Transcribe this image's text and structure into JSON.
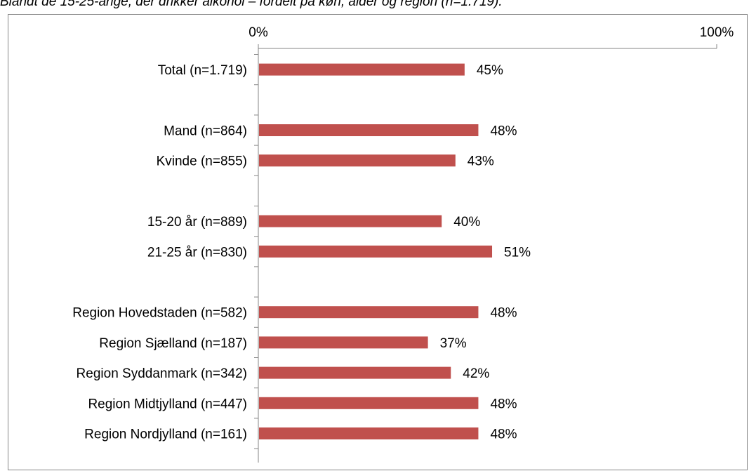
{
  "caption": "Blandt de 15-25-årige, der drikker alkohol – fordelt på køn, alder og region (n=1.719).",
  "chart_data": {
    "type": "bar",
    "orientation": "horizontal",
    "categories": [
      "Total (n=1.719)",
      "",
      "Mand (n=864)",
      "Kvinde (n=855)",
      "",
      "15-20 år (n=889)",
      "21-25 år (n=830)",
      "",
      "Region Hovedstaden (n=582)",
      "Region Sjælland (n=187)",
      "Region Syddanmark (n=342)",
      "Region Midtjylland (n=447)",
      "Region Nordjylland (n=161)"
    ],
    "values": [
      45,
      null,
      48,
      43,
      null,
      40,
      51,
      null,
      48,
      37,
      42,
      48,
      48
    ],
    "data_labels": [
      "45%",
      "",
      "48%",
      "43%",
      "",
      "40%",
      "51%",
      "",
      "48%",
      "37%",
      "42%",
      "48%",
      "48%"
    ],
    "xlim": [
      0,
      100
    ],
    "x_ticks": [
      0,
      100
    ],
    "x_tick_labels": [
      "0%",
      "100%"
    ],
    "x_axis_position": "top",
    "grid": false,
    "legend": "none",
    "bar_color": "#c0504d",
    "axis_color": "#868686"
  }
}
